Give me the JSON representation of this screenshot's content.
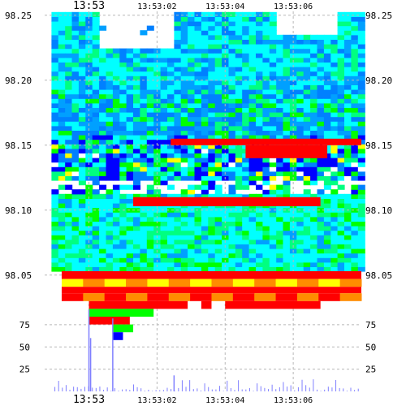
{
  "chart_data": {
    "type": "heatmap",
    "title": "",
    "xlabel": "",
    "ylabel": "",
    "time_ticks": [
      "13:53",
      "13:53:02",
      "13:53:04",
      "13:53:06"
    ],
    "time_range_s": [
      -1.3,
      8.0
    ],
    "price_ticks": [
      98.05,
      98.1,
      98.15,
      98.2,
      98.25
    ],
    "price_range": [
      98.028,
      98.253
    ],
    "volume_ticks": [
      25,
      50,
      75
    ],
    "volume_range": [
      0,
      95
    ],
    "grid": true,
    "color_scale": [
      "#0000ff",
      "#0080ff",
      "#00ffff",
      "#00ff80",
      "#00ff00",
      "#ffff00",
      "#ff8000",
      "#ff0000"
    ],
    "bands": [
      {
        "low": 98.047,
        "high": 98.053,
        "t": [
          -0.8,
          8.0
        ],
        "colors": [
          "red"
        ]
      },
      {
        "low": 98.041,
        "high": 98.047,
        "t": [
          -0.8,
          8.0
        ],
        "colors": [
          "yellow",
          "orange"
        ]
      },
      {
        "low": 98.036,
        "high": 98.041,
        "t": [
          -0.8,
          8.0
        ],
        "colors": [
          "red"
        ]
      },
      {
        "low": 98.03,
        "high": 98.036,
        "t": [
          -0.8,
          8.0
        ],
        "colors": [
          "red",
          "orange"
        ]
      },
      {
        "low": 98.024,
        "high": 98.03,
        "t": [
          0.0,
          2.9
        ],
        "colors": [
          "red"
        ]
      },
      {
        "low": 98.024,
        "high": 98.03,
        "t": [
          3.3,
          3.6
        ],
        "colors": [
          "red"
        ]
      },
      {
        "low": 98.024,
        "high": 98.03,
        "t": [
          4.0,
          6.8
        ],
        "colors": [
          "red"
        ]
      },
      {
        "low": 98.018,
        "high": 98.024,
        "t": [
          0.0,
          1.9
        ],
        "colors": [
          "lime"
        ]
      },
      {
        "low": 98.012,
        "high": 98.018,
        "t": [
          0.0,
          1.2
        ],
        "colors": [
          "red"
        ]
      },
      {
        "low": 98.006,
        "high": 98.012,
        "t": [
          0.7,
          1.3
        ],
        "colors": [
          "lime"
        ]
      },
      {
        "low": 98.0,
        "high": 98.006,
        "t": [
          0.7,
          1.0
        ],
        "colors": [
          "blue"
        ]
      },
      {
        "low": 98.103,
        "high": 98.11,
        "t": [
          1.3,
          6.8
        ],
        "colors": [
          "red"
        ]
      },
      {
        "low": 98.15,
        "high": 98.155,
        "t": [
          2.4,
          8.0
        ],
        "colors": [
          "red"
        ]
      },
      {
        "low": 98.14,
        "high": 98.15,
        "t": [
          4.6,
          7.0
        ],
        "colors": [
          "red"
        ]
      }
    ],
    "volume_bars": [
      {
        "t": 0.0,
        "v": 92
      },
      {
        "t": 0.05,
        "v": 60
      },
      {
        "t": 0.7,
        "v": 82
      },
      {
        "t": 2.5,
        "v": 18
      }
    ]
  }
}
